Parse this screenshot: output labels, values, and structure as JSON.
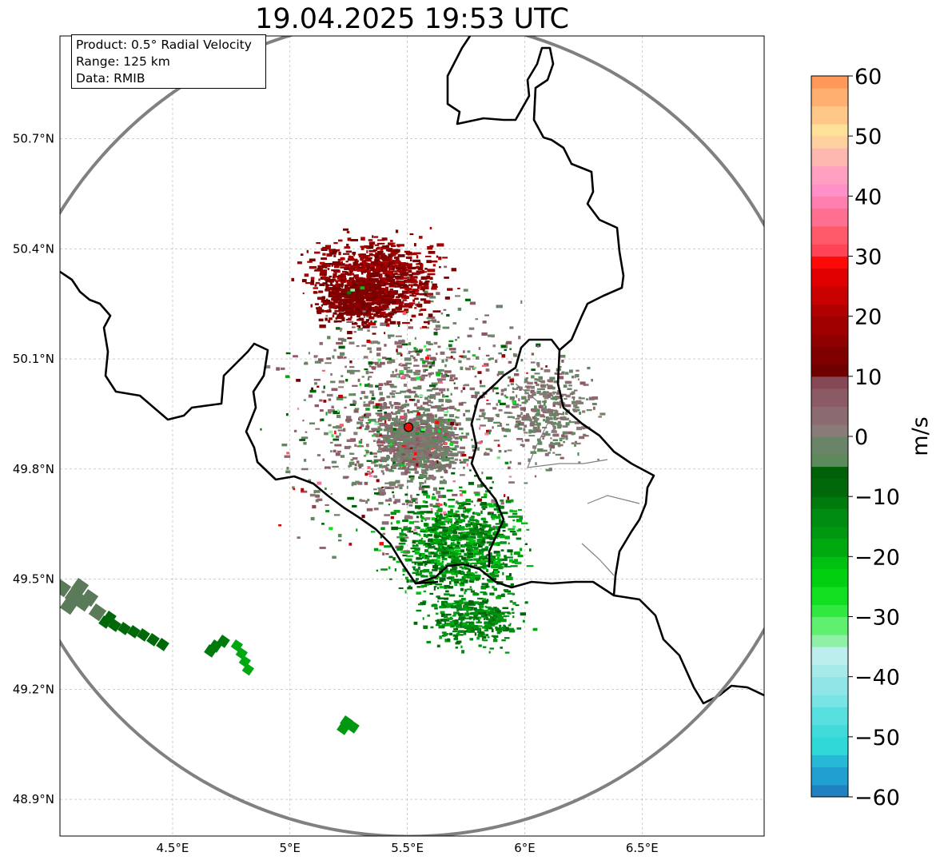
{
  "map": {
    "title": "19.04.2025 19:53 UTC",
    "info": {
      "product": "Product: 0.5° Radial Velocity",
      "range": "Range: 125 km",
      "source": "Data: RMIB"
    },
    "lon_range": [
      4.02,
      7.02
    ],
    "lat_range": [
      48.8,
      50.98
    ],
    "lon_ticks": [
      {
        "value": 4.5,
        "label": "4.5°E"
      },
      {
        "value": 5.0,
        "label": "5°E"
      },
      {
        "value": 5.5,
        "label": "5.5°E"
      },
      {
        "value": 6.0,
        "label": "6°E"
      },
      {
        "value": 6.5,
        "label": "6.5°E"
      }
    ],
    "lat_ticks": [
      {
        "value": 50.7,
        "label": "50.7°N"
      },
      {
        "value": 50.4,
        "label": "50.4°N"
      },
      {
        "value": 50.1,
        "label": "50.1°N"
      },
      {
        "value": 49.8,
        "label": "49.8°N"
      },
      {
        "value": 49.5,
        "label": "49.5°N"
      },
      {
        "value": 49.2,
        "label": "49.2°N"
      },
      {
        "value": 48.9,
        "label": "48.9°N"
      }
    ],
    "radar_site": {
      "lon": 5.505,
      "lat": 49.914,
      "color": "#e01010"
    },
    "range_ring_color": "#808080",
    "border_color": "#000000",
    "minor_border_color": "#808080",
    "grid": true
  },
  "colorbar": {
    "label": "m/s",
    "min": -60,
    "max": 60,
    "ticks": [
      {
        "value": 60,
        "label": "60"
      },
      {
        "value": 50,
        "label": "50"
      },
      {
        "value": 40,
        "label": "40"
      },
      {
        "value": 30,
        "label": "30"
      },
      {
        "value": 20,
        "label": "20"
      },
      {
        "value": 10,
        "label": "10"
      },
      {
        "value": 0,
        "label": "0"
      },
      {
        "value": -10,
        "label": "−10"
      },
      {
        "value": -20,
        "label": "−20"
      },
      {
        "value": -30,
        "label": "−30"
      },
      {
        "value": -40,
        "label": "−40"
      },
      {
        "value": -50,
        "label": "−50"
      },
      {
        "value": -60,
        "label": "−60"
      }
    ],
    "stops": [
      {
        "from": -60,
        "to": -58,
        "color": "#2080c0"
      },
      {
        "from": -58,
        "to": -55,
        "color": "#20a0d0"
      },
      {
        "from": -55,
        "to": -53,
        "color": "#28b8d8"
      },
      {
        "from": -53,
        "to": -50,
        "color": "#30d8d8"
      },
      {
        "from": -50,
        "to": -48,
        "color": "#40dcdc"
      },
      {
        "from": -48,
        "to": -45,
        "color": "#58e0e0"
      },
      {
        "from": -45,
        "to": -43,
        "color": "#78e4e4"
      },
      {
        "from": -43,
        "to": -40,
        "color": "#90e6e6"
      },
      {
        "from": -40,
        "to": -38,
        "color": "#a6eaea"
      },
      {
        "from": -38,
        "to": -35,
        "color": "#bceeee"
      },
      {
        "from": -35,
        "to": -33,
        "color": "#90f0a8"
      },
      {
        "from": -33,
        "to": -30,
        "color": "#60f070"
      },
      {
        "from": -30,
        "to": -28,
        "color": "#30e840"
      },
      {
        "from": -28,
        "to": -25,
        "color": "#10e020"
      },
      {
        "from": -25,
        "to": -22,
        "color": "#00d010"
      },
      {
        "from": -22,
        "to": -20,
        "color": "#00c010"
      },
      {
        "from": -20,
        "to": -17,
        "color": "#00a810"
      },
      {
        "from": -17,
        "to": -15,
        "color": "#009810"
      },
      {
        "from": -15,
        "to": -12,
        "color": "#008c10"
      },
      {
        "from": -12,
        "to": -10,
        "color": "#007a0c"
      },
      {
        "from": -10,
        "to": -7,
        "color": "#006808"
      },
      {
        "from": -7,
        "to": -5,
        "color": "#006008"
      },
      {
        "from": -5,
        "to": -3,
        "color": "#5c8a5c"
      },
      {
        "from": -3,
        "to": 0,
        "color": "#6a8468"
      },
      {
        "from": 0,
        "to": 2,
        "color": "#8a7a78"
      },
      {
        "from": 2,
        "to": 5,
        "color": "#8c6a72"
      },
      {
        "from": 5,
        "to": 8,
        "color": "#8c5a64"
      },
      {
        "from": 8,
        "to": 10,
        "color": "#864854"
      },
      {
        "from": 10,
        "to": 12,
        "color": "#700000"
      },
      {
        "from": 12,
        "to": 15,
        "color": "#800000"
      },
      {
        "from": 15,
        "to": 17,
        "color": "#900000"
      },
      {
        "from": 17,
        "to": 20,
        "color": "#a00000"
      },
      {
        "from": 20,
        "to": 22,
        "color": "#b00000"
      },
      {
        "from": 22,
        "to": 25,
        "color": "#c80000"
      },
      {
        "from": 25,
        "to": 28,
        "color": "#e00000"
      },
      {
        "from": 28,
        "to": 30,
        "color": "#ff0808"
      },
      {
        "from": 30,
        "to": 32,
        "color": "#ff4455"
      },
      {
        "from": 32,
        "to": 35,
        "color": "#ff5a6a"
      },
      {
        "from": 35,
        "to": 38,
        "color": "#ff7090"
      },
      {
        "from": 38,
        "to": 40,
        "color": "#ff80b0"
      },
      {
        "from": 40,
        "to": 42,
        "color": "#ff90c8"
      },
      {
        "from": 42,
        "to": 45,
        "color": "#ffa0c0"
      },
      {
        "from": 45,
        "to": 48,
        "color": "#ffb8b0"
      },
      {
        "from": 48,
        "to": 50,
        "color": "#ffd0a0"
      },
      {
        "from": 50,
        "to": 52,
        "color": "#ffe098"
      },
      {
        "from": 52,
        "to": 55,
        "color": "#ffc888"
      },
      {
        "from": 55,
        "to": 58,
        "color": "#ffb070"
      },
      {
        "from": 58,
        "to": 60,
        "color": "#ff9858"
      }
    ]
  }
}
